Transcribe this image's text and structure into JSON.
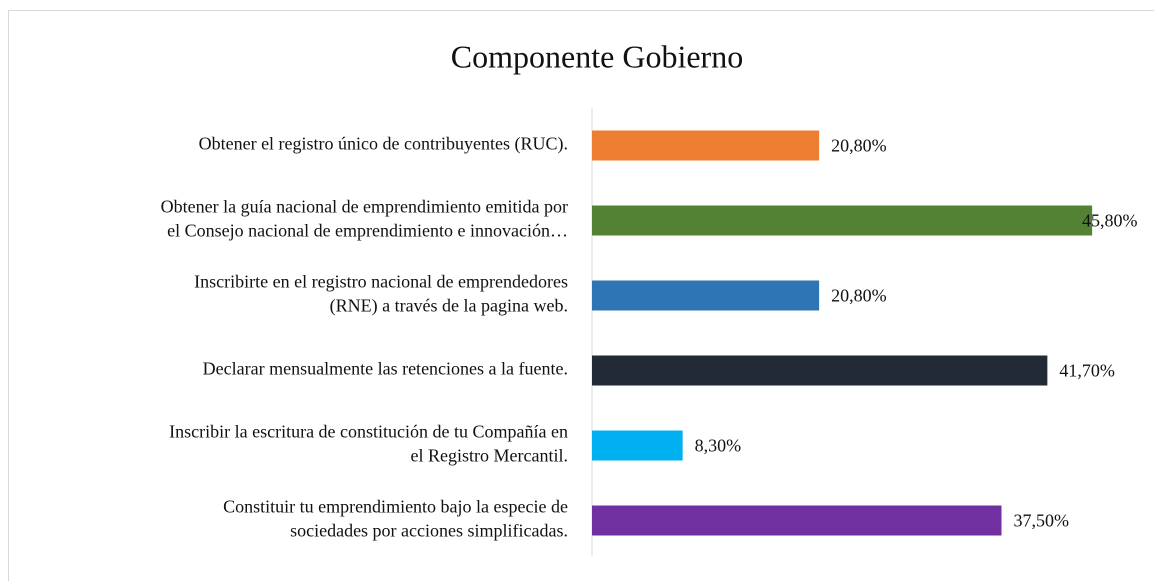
{
  "chart_data": {
    "type": "barh",
    "title": "Componente Gobierno",
    "categories": [
      [
        "Obtener el registro único de contribuyentes (RUC)."
      ],
      [
        "Obtener la guía nacional de emprendimiento emitida por",
        "el Consejo nacional de emprendimiento e innovación…"
      ],
      [
        "Inscribirte en el registro nacional de emprendedores",
        "(RNE) a través de la pagina web."
      ],
      [
        "Declarar mensualmente las retenciones a la fuente."
      ],
      [
        "Inscribir la escritura de constitución de tu Compañía en",
        "el Registro Mercantil."
      ],
      [
        "Constituir tu emprendimiento bajo la especie de",
        "sociedades por acciones simplificadas."
      ]
    ],
    "values": [
      20.8,
      45.8,
      20.8,
      41.7,
      8.3,
      37.5
    ],
    "value_labels": [
      "20,80%",
      "45,80%",
      "20,80%",
      "41,70%",
      "8,30%",
      "37,50%"
    ],
    "colors": [
      "#ed7d31",
      "#548235",
      "#2e75b6",
      "#222a35",
      "#00b0f0",
      "#7030a0"
    ],
    "xlim": [
      0,
      50
    ]
  }
}
